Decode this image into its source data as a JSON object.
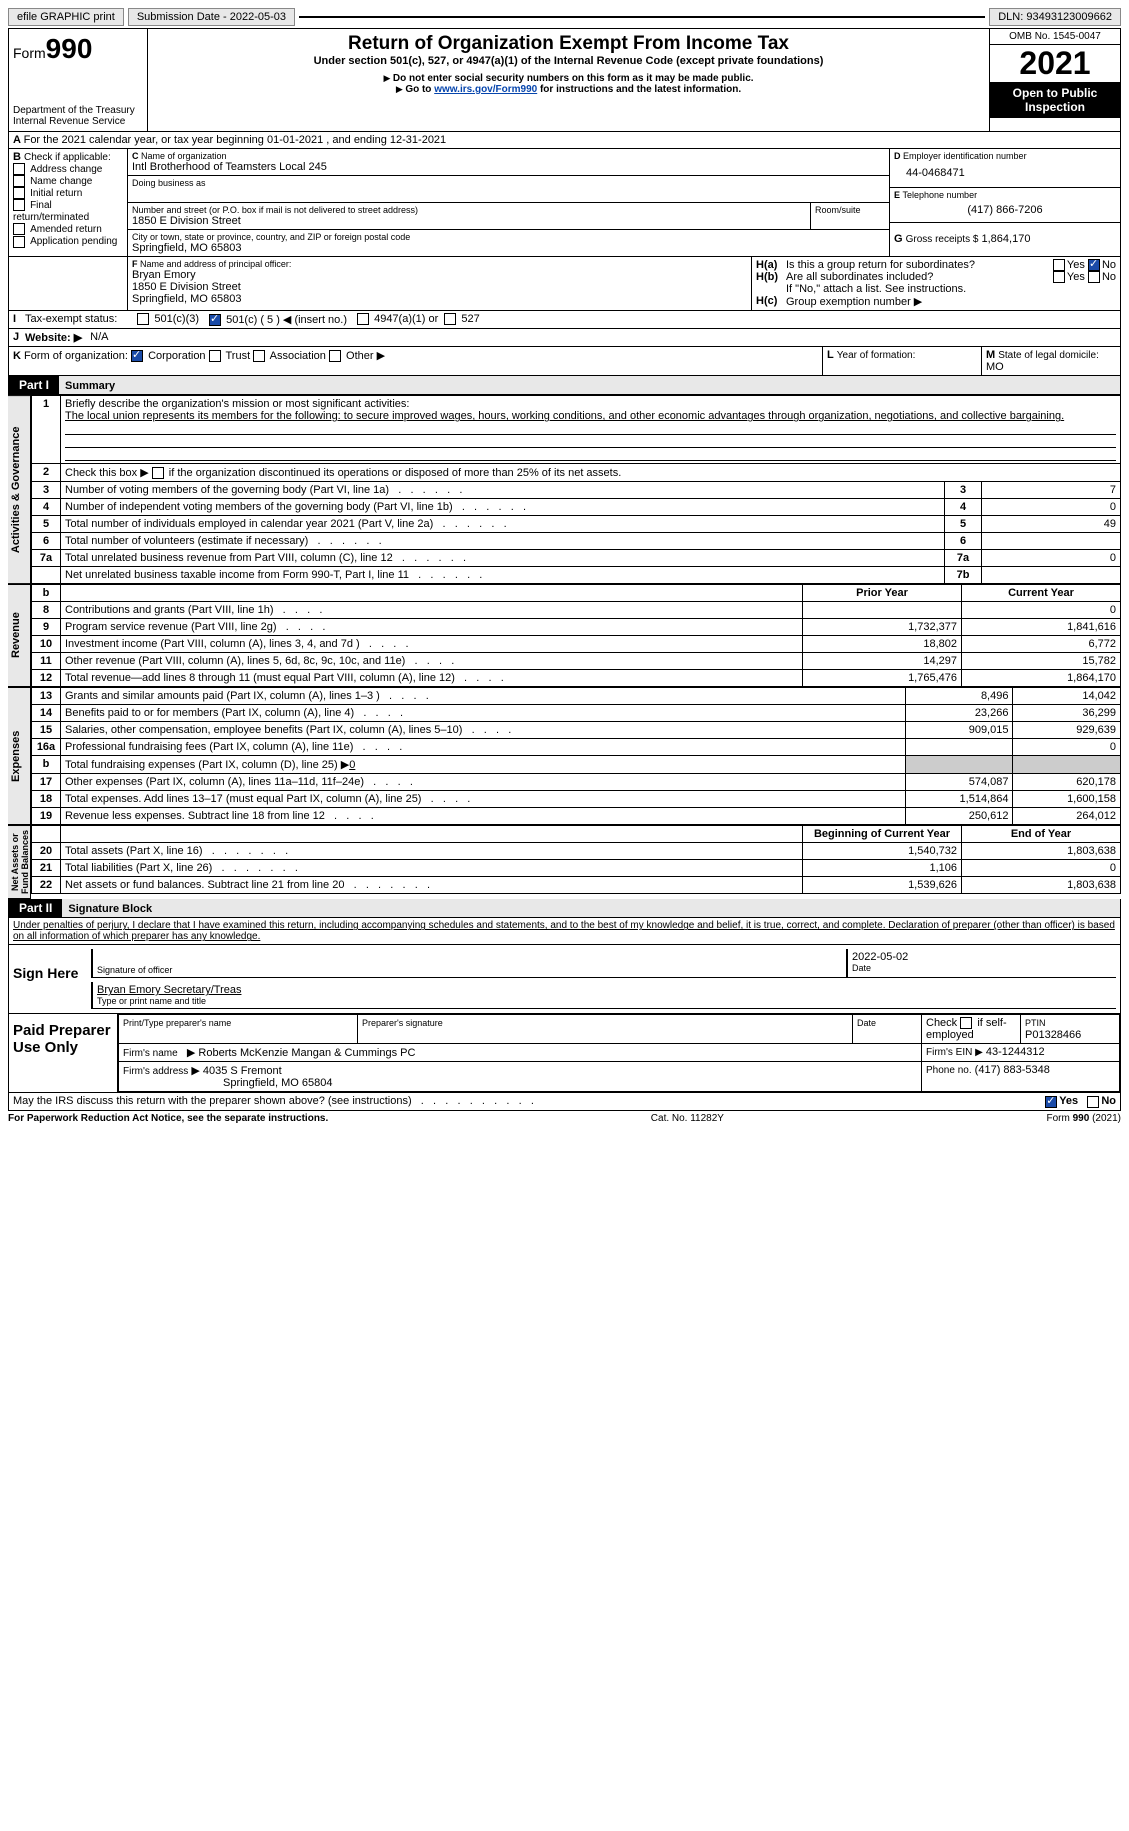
{
  "topbar": {
    "efile": "efile GRAPHIC print",
    "submission": "Submission Date - 2022-05-03",
    "dln": "DLN: 93493123009662"
  },
  "header": {
    "form_label": "Form",
    "form_num": "990",
    "dept": "Department of the Treasury",
    "irs": "Internal Revenue Service",
    "title": "Return of Organization Exempt From Income Tax",
    "subtitle": "Under section 501(c), 527, or 4947(a)(1) of the Internal Revenue Code (except private foundations)",
    "note1": "Do not enter social security numbers on this form as it may be made public.",
    "note2_pre": "Go to ",
    "note2_link": "www.irs.gov/Form990",
    "note2_post": " for instructions and the latest information.",
    "omb": "OMB No. 1545-0047",
    "year": "2021",
    "open": "Open to Public Inspection"
  },
  "A": {
    "text": "For the 2021 calendar year, or tax year beginning 01-01-2021     , and ending 12-31-2021"
  },
  "B": {
    "label": "Check if applicable:",
    "items": [
      "Address change",
      "Name change",
      "Initial return",
      "Final return/terminated",
      "Amended return",
      "Application pending"
    ]
  },
  "C": {
    "name_lbl": "Name of organization",
    "name": "Intl Brotherhood of Teamsters Local 245",
    "dba_lbl": "Doing business as",
    "dba": "",
    "street_lbl": "Number and street (or P.O. box if mail is not delivered to street address)",
    "room_lbl": "Room/suite",
    "street": "1850 E Division Street",
    "city_lbl": "City or town, state or province, country, and ZIP or foreign postal code",
    "city": "Springfield, MO  65803"
  },
  "D": {
    "label": "Employer identification number",
    "val": "44-0468471"
  },
  "E": {
    "label": "Telephone number",
    "val": "(417) 866-7206"
  },
  "G": {
    "label": "Gross receipts $",
    "val": "1,864,170"
  },
  "F": {
    "label": "Name and address of principal officer:",
    "name": "Bryan Emory",
    "addr1": "1850 E Division Street",
    "addr2": "Springfield, MO  65803"
  },
  "H": {
    "a": "Is this a group return for subordinates?",
    "b": "Are all subordinates included?",
    "note": "If \"No,\" attach a list. See instructions.",
    "c": "Group exemption number ▶",
    "yes": "Yes",
    "no": "No"
  },
  "I": {
    "label": "Tax-exempt status:",
    "o1": "501(c)(3)",
    "o2": "501(c) ( 5 ) ◀ (insert no.)",
    "o3": "4947(a)(1) or",
    "o4": "527"
  },
  "J": {
    "label": "Website: ▶",
    "val": "N/A"
  },
  "K": {
    "label": "Form of organization:",
    "o1": "Corporation",
    "o2": "Trust",
    "o3": "Association",
    "o4": "Other ▶"
  },
  "L": {
    "label": "Year of formation:",
    "val": ""
  },
  "M": {
    "label": "State of legal domicile:",
    "val": "MO"
  },
  "part1": {
    "hdr": "Part I",
    "title": "Summary",
    "l1": "Briefly describe the organization's mission or most significant activities:",
    "l1v": "The local union represents its members for the following: to secure improved wages, hours, working conditions, and other economic advantages through organization, negotiations, and collective bargaining.",
    "l2": "Check this box ▶",
    "l2b": "if the organization discontinued its operations or disposed of more than 25% of its net assets.",
    "rows": [
      {
        "n": "3",
        "t": "Number of voting members of the governing body (Part VI, line 1a)",
        "box": "3",
        "v": "7"
      },
      {
        "n": "4",
        "t": "Number of independent voting members of the governing body (Part VI, line 1b)",
        "box": "4",
        "v": "0"
      },
      {
        "n": "5",
        "t": "Total number of individuals employed in calendar year 2021 (Part V, line 2a)",
        "box": "5",
        "v": "49"
      },
      {
        "n": "6",
        "t": "Total number of volunteers (estimate if necessary)",
        "box": "6",
        "v": ""
      },
      {
        "n": "7a",
        "t": "Total unrelated business revenue from Part VIII, column (C), line 12",
        "box": "7a",
        "v": "0"
      },
      {
        "n": "",
        "t": "Net unrelated business taxable income from Form 990-T, Part I, line 11",
        "box": "7b",
        "v": ""
      }
    ],
    "colhdr": {
      "b": "b",
      "prior": "Prior Year",
      "curr": "Current Year"
    },
    "revenue": [
      {
        "n": "8",
        "t": "Contributions and grants (Part VIII, line 1h)",
        "p": "",
        "c": "0"
      },
      {
        "n": "9",
        "t": "Program service revenue (Part VIII, line 2g)",
        "p": "1,732,377",
        "c": "1,841,616"
      },
      {
        "n": "10",
        "t": "Investment income (Part VIII, column (A), lines 3, 4, and 7d )",
        "p": "18,802",
        "c": "6,772"
      },
      {
        "n": "11",
        "t": "Other revenue (Part VIII, column (A), lines 5, 6d, 8c, 9c, 10c, and 11e)",
        "p": "14,297",
        "c": "15,782"
      },
      {
        "n": "12",
        "t": "Total revenue—add lines 8 through 11 (must equal Part VIII, column (A), line 12)",
        "p": "1,765,476",
        "c": "1,864,170"
      }
    ],
    "expenses": [
      {
        "n": "13",
        "t": "Grants and similar amounts paid (Part IX, column (A), lines 1–3 )",
        "p": "8,496",
        "c": "14,042"
      },
      {
        "n": "14",
        "t": "Benefits paid to or for members (Part IX, column (A), line 4)",
        "p": "23,266",
        "c": "36,299"
      },
      {
        "n": "15",
        "t": "Salaries, other compensation, employee benefits (Part IX, column (A), lines 5–10)",
        "p": "909,015",
        "c": "929,639"
      },
      {
        "n": "16a",
        "t": "Professional fundraising fees (Part IX, column (A), line 11e)",
        "p": "",
        "c": "0"
      },
      {
        "n": "b",
        "t": "Total fundraising expenses (Part IX, column (D), line 25) ▶",
        "tval": "0",
        "p": "shade",
        "c": "shade"
      },
      {
        "n": "17",
        "t": "Other expenses (Part IX, column (A), lines 11a–11d, 11f–24e)",
        "p": "574,087",
        "c": "620,178"
      },
      {
        "n": "18",
        "t": "Total expenses. Add lines 13–17 (must equal Part IX, column (A), line 25)",
        "p": "1,514,864",
        "c": "1,600,158"
      },
      {
        "n": "19",
        "t": "Revenue less expenses. Subtract line 18 from line 12",
        "p": "250,612",
        "c": "264,012"
      }
    ],
    "nethdr": {
      "p": "Beginning of Current Year",
      "c": "End of Year"
    },
    "net": [
      {
        "n": "20",
        "t": "Total assets (Part X, line 16)",
        "p": "1,540,732",
        "c": "1,803,638"
      },
      {
        "n": "21",
        "t": "Total liabilities (Part X, line 26)",
        "p": "1,106",
        "c": "0"
      },
      {
        "n": "22",
        "t": "Net assets or fund balances. Subtract line 21 from line 20",
        "p": "1,539,626",
        "c": "1,803,638"
      }
    ]
  },
  "part2": {
    "hdr": "Part II",
    "title": "Signature Block",
    "decl": "Under penalties of perjury, I declare that I have examined this return, including accompanying schedules and statements, and to the best of my knowledge and belief, it is true, correct, and complete. Declaration of preparer (other than officer) is based on all information of which preparer has any knowledge.",
    "sign_here": "Sign Here",
    "sig_lbl": "Signature of officer",
    "date_lbl": "Date",
    "date": "2022-05-02",
    "officer": "Bryan Emory  Secretary/Treas",
    "type_lbl": "Type or print name and title",
    "paid": "Paid Preparer Use Only",
    "prep_name_lbl": "Print/Type preparer's name",
    "prep_sig_lbl": "Preparer's signature",
    "prep_date_lbl": "Date",
    "check_lbl": "Check",
    "self_lbl": "if self-employed",
    "ptin_lbl": "PTIN",
    "ptin": "P01328466",
    "firm_name_lbl": "Firm's name",
    "firm_name": "Roberts McKenzie Mangan & Cummings PC",
    "firm_ein_lbl": "Firm's EIN ▶",
    "firm_ein": "43-1244312",
    "firm_addr_lbl": "Firm's address",
    "firm_addr1": "4035 S Fremont",
    "firm_addr2": "Springfield, MO  65804",
    "phone_lbl": "Phone no.",
    "phone": "(417) 883-5348",
    "discuss": "May the IRS discuss this return with the preparer shown above? (see instructions)",
    "yes": "Yes",
    "no": "No"
  },
  "footer": {
    "l": "For Paperwork Reduction Act Notice, see the separate instructions.",
    "m": "Cat. No. 11282Y",
    "r": "Form 990 (2021)"
  }
}
